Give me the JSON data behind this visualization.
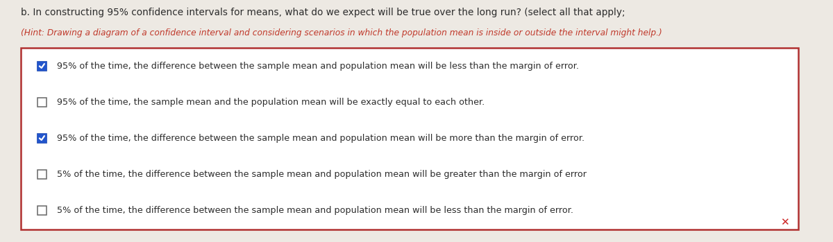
{
  "bg_color": "#ede9e3",
  "question_text": "b. In constructing 95% confidence intervals for means, what do we expect will be true over the long run? (select all that apply;",
  "hint_text": "(Hint: Drawing a diagram of a confidence interval and considering scenarios in which the population mean is inside or outside the interval might help.)",
  "options": [
    {
      "checked": true,
      "text": "95% of the time, the difference between the sample mean and population mean will be less than the margin of error."
    },
    {
      "checked": false,
      "text": "95% of the time, the sample mean and the population mean will be exactly equal to each other."
    },
    {
      "checked": true,
      "text": "95% of the time, the difference between the sample mean and population mean will be more than the margin of error."
    },
    {
      "checked": false,
      "text": "5% of the time, the difference between the sample mean and population mean will be greater than the margin of error"
    },
    {
      "checked": false,
      "text": "5% of the time, the difference between the sample mean and population mean will be less than the margin of error."
    }
  ],
  "box_border_color": "#b03030",
  "hint_color": "#c0392b",
  "question_color": "#2c2c2c",
  "option_text_color": "#2c2c2c",
  "x_mark_color": "#cc2222",
  "font_size": 9.2,
  "hint_font_size": 8.8,
  "question_font_size": 9.8,
  "checkbox_checked_color": "#2255cc",
  "checkbox_border_color": "#666666"
}
